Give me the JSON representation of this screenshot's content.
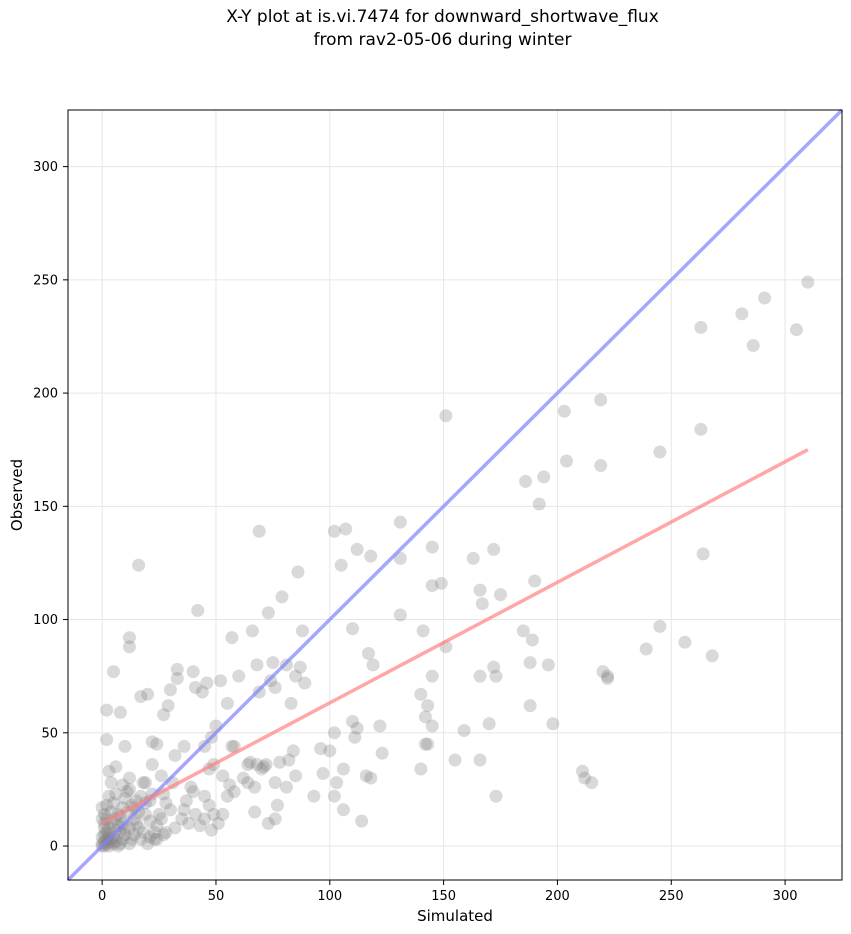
{
  "chart_data": {
    "type": "scatter",
    "title_lines": [
      "X-Y plot at is.vi.7474 for downward_shortwave_flux",
      "from rav2-05-06 during winter"
    ],
    "xlabel": "Simulated",
    "ylabel": "Observed",
    "xlim": [
      -15,
      325
    ],
    "ylim": [
      -15,
      325
    ],
    "xticks": [
      0,
      50,
      100,
      150,
      200,
      250,
      300
    ],
    "yticks": [
      0,
      50,
      100,
      150,
      200,
      250,
      300
    ],
    "grid": true,
    "point_color": "#808080",
    "one_to_one_line": {
      "from": [
        -15,
        -15
      ],
      "to": [
        325,
        325
      ],
      "color": "#8080ff"
    },
    "fit_line": {
      "from": [
        0,
        10
      ],
      "to": [
        310,
        175
      ],
      "color": "#ff8080"
    },
    "points": [
      [
        310,
        249
      ],
      [
        291,
        242
      ],
      [
        281,
        235
      ],
      [
        263,
        229
      ],
      [
        305,
        228
      ],
      [
        286,
        221
      ],
      [
        219,
        197
      ],
      [
        203,
        192
      ],
      [
        151,
        190
      ],
      [
        263,
        184
      ],
      [
        245,
        174
      ],
      [
        204,
        170
      ],
      [
        219,
        168
      ],
      [
        194,
        163
      ],
      [
        186,
        161
      ],
      [
        192,
        151
      ],
      [
        131,
        143
      ],
      [
        69,
        139
      ],
      [
        102,
        139
      ],
      [
        107,
        140
      ],
      [
        112,
        131
      ],
      [
        131,
        127
      ],
      [
        118,
        128
      ],
      [
        145,
        132
      ],
      [
        172,
        131
      ],
      [
        163,
        127
      ],
      [
        105,
        124
      ],
      [
        16,
        124
      ],
      [
        86,
        121
      ],
      [
        149,
        116
      ],
      [
        145,
        115
      ],
      [
        175,
        111
      ],
      [
        79,
        110
      ],
      [
        166,
        113
      ],
      [
        167,
        107
      ],
      [
        264,
        129
      ],
      [
        42,
        104
      ],
      [
        73,
        103
      ],
      [
        131,
        102
      ],
      [
        110,
        96
      ],
      [
        88,
        95
      ],
      [
        141,
        95
      ],
      [
        185,
        95
      ],
      [
        12,
        92
      ],
      [
        12,
        88
      ],
      [
        57,
        92
      ],
      [
        66,
        95
      ],
      [
        190,
        117
      ],
      [
        189,
        91
      ],
      [
        151,
        88
      ],
      [
        245,
        97
      ],
      [
        256,
        90
      ],
      [
        239,
        87
      ],
      [
        268,
        84
      ],
      [
        196,
        80
      ],
      [
        188,
        81
      ],
      [
        220,
        77
      ],
      [
        222,
        75
      ],
      [
        222,
        74
      ],
      [
        172,
        79
      ],
      [
        166,
        75
      ],
      [
        173,
        75
      ],
      [
        117,
        85
      ],
      [
        119,
        80
      ],
      [
        75,
        81
      ],
      [
        81,
        80
      ],
      [
        87,
        79
      ],
      [
        68,
        80
      ],
      [
        60,
        75
      ],
      [
        52,
        73
      ],
      [
        74,
        73
      ],
      [
        85,
        75
      ],
      [
        89,
        72
      ],
      [
        33,
        78
      ],
      [
        33,
        74
      ],
      [
        40,
        77
      ],
      [
        5,
        77
      ],
      [
        41,
        70
      ],
      [
        30,
        69
      ],
      [
        69,
        68
      ],
      [
        76,
        70
      ],
      [
        46,
        72
      ],
      [
        55,
        63
      ],
      [
        83,
        63
      ],
      [
        29,
        62
      ],
      [
        2,
        60
      ],
      [
        8,
        59
      ],
      [
        27,
        58
      ],
      [
        17,
        66
      ],
      [
        20,
        67
      ],
      [
        44,
        68
      ],
      [
        140,
        67
      ],
      [
        145,
        75
      ],
      [
        143,
        62
      ],
      [
        188,
        62
      ],
      [
        142,
        57
      ],
      [
        159,
        51
      ],
      [
        145,
        53
      ],
      [
        170,
        54
      ],
      [
        198,
        54
      ],
      [
        110,
        55
      ],
      [
        112,
        52
      ],
      [
        111,
        48
      ],
      [
        122,
        53
      ],
      [
        102,
        50
      ],
      [
        100,
        42
      ],
      [
        96,
        43
      ],
      [
        123,
        41
      ],
      [
        78,
        37
      ],
      [
        71,
        35
      ],
      [
        72,
        36
      ],
      [
        65,
        37
      ],
      [
        68,
        36
      ],
      [
        56,
        27
      ],
      [
        67,
        26
      ],
      [
        64,
        28
      ],
      [
        85,
        31
      ],
      [
        97,
        32
      ],
      [
        103,
        28
      ],
      [
        106,
        34
      ],
      [
        116,
        31
      ],
      [
        118,
        30
      ],
      [
        102,
        22
      ],
      [
        106,
        16
      ],
      [
        93,
        22
      ],
      [
        114,
        11
      ],
      [
        73,
        10
      ],
      [
        76,
        12
      ],
      [
        77,
        18
      ],
      [
        67,
        15
      ],
      [
        81,
        26
      ],
      [
        140,
        34
      ],
      [
        142,
        45
      ],
      [
        143,
        45
      ],
      [
        155,
        38
      ],
      [
        166,
        38
      ],
      [
        173,
        22
      ],
      [
        211,
        33
      ],
      [
        212,
        30
      ],
      [
        215,
        28
      ],
      [
        48,
        7
      ],
      [
        49,
        14
      ],
      [
        47,
        18
      ],
      [
        40,
        24
      ],
      [
        36,
        16
      ],
      [
        38,
        10
      ],
      [
        45,
        22
      ],
      [
        58,
        44
      ],
      [
        57,
        44
      ],
      [
        45,
        44
      ],
      [
        48,
        48
      ],
      [
        50,
        53
      ],
      [
        49,
        36
      ],
      [
        47,
        34
      ],
      [
        53,
        31
      ],
      [
        36,
        44
      ],
      [
        32,
        40
      ],
      [
        24,
        45
      ],
      [
        22,
        46
      ],
      [
        22,
        36
      ],
      [
        26,
        31
      ],
      [
        19,
        28
      ],
      [
        18,
        28
      ],
      [
        12,
        30
      ],
      [
        10,
        44
      ],
      [
        6,
        35
      ],
      [
        3,
        33
      ],
      [
        2,
        47
      ],
      [
        31,
        28
      ],
      [
        27,
        23
      ],
      [
        28,
        19
      ],
      [
        30,
        16
      ],
      [
        26,
        12
      ],
      [
        23,
        6
      ],
      [
        17,
        3
      ],
      [
        10,
        5
      ],
      [
        9,
        10
      ],
      [
        15,
        10
      ],
      [
        14,
        17
      ],
      [
        17,
        22
      ],
      [
        21,
        20
      ],
      [
        12,
        25
      ],
      [
        9,
        27
      ],
      [
        6,
        23
      ],
      [
        4,
        28
      ],
      [
        3,
        22
      ],
      [
        2,
        18
      ],
      [
        1,
        14
      ],
      [
        1,
        10
      ],
      [
        2,
        6
      ],
      [
        3,
        3
      ],
      [
        1,
        2
      ],
      [
        0,
        1
      ],
      [
        2,
        1
      ],
      [
        4,
        2
      ],
      [
        5,
        4
      ],
      [
        6,
        7
      ],
      [
        7,
        9
      ],
      [
        8,
        13
      ],
      [
        11,
        15
      ],
      [
        13,
        18
      ],
      [
        15,
        20
      ],
      [
        19,
        14
      ],
      [
        21,
        11
      ],
      [
        24,
        9
      ],
      [
        25,
        14
      ],
      [
        28,
        6
      ],
      [
        23,
        3
      ],
      [
        20,
        1
      ],
      [
        12,
        1
      ],
      [
        9,
        3
      ],
      [
        7,
        0
      ],
      [
        3,
        5
      ],
      [
        1,
        8
      ],
      [
        0,
        4
      ],
      [
        0,
        12
      ],
      [
        0,
        17
      ],
      [
        2,
        12
      ],
      [
        4,
        15
      ],
      [
        5,
        19
      ],
      [
        7,
        14
      ],
      [
        9,
        17
      ],
      [
        10,
        21
      ],
      [
        11,
        24
      ],
      [
        14,
        12
      ],
      [
        16,
        8
      ],
      [
        18,
        6
      ],
      [
        21,
        4
      ],
      [
        24,
        3
      ],
      [
        27,
        5
      ],
      [
        32,
        8
      ],
      [
        35,
        12
      ],
      [
        37,
        20
      ],
      [
        39,
        26
      ],
      [
        41,
        14
      ],
      [
        43,
        9
      ],
      [
        45,
        12
      ],
      [
        51,
        10
      ],
      [
        53,
        14
      ],
      [
        55,
        22
      ],
      [
        58,
        24
      ],
      [
        62,
        30
      ],
      [
        64,
        36
      ],
      [
        70,
        34
      ],
      [
        76,
        28
      ],
      [
        82,
        38
      ],
      [
        84,
        42
      ],
      [
        12,
        8
      ],
      [
        14,
        5
      ],
      [
        16,
        15
      ],
      [
        19,
        19
      ],
      [
        22,
        23
      ],
      [
        4,
        10
      ],
      [
        6,
        12
      ],
      [
        8,
        6
      ],
      [
        10,
        8
      ],
      [
        3,
        8
      ],
      [
        5,
        1
      ],
      [
        2,
        3
      ],
      [
        1,
        5
      ],
      [
        0,
        0
      ],
      [
        1,
        0
      ],
      [
        3,
        0
      ],
      [
        6,
        2
      ],
      [
        8,
        1
      ],
      [
        13,
        3
      ]
    ]
  }
}
